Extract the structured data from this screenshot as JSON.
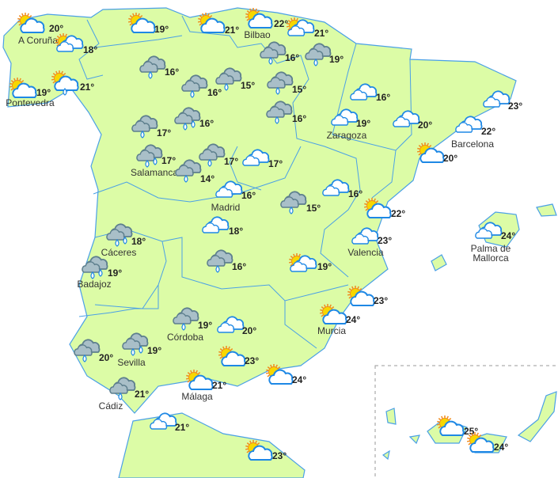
{
  "colors": {
    "land": "#dcfca6",
    "border": "#4aa0e6",
    "cloud_stroke": "#1e88e5",
    "rain_cloud": "#a9bfc8",
    "rain_stroke": "#5d7f8d",
    "sun": "#f7d700",
    "sun_rays": "#f08a1c"
  },
  "legend_icons": {
    "sun-cloud": "sun-behind-cloud-icon",
    "sun-clouds": "sun-behind-clouds-icon",
    "clouds": "clouds-icon",
    "rain": "rain-cloud-icon",
    "rain2": "showers-cloud-icon",
    "sun-cloud-rain": "sun-cloud-rain-icon"
  },
  "stations": [
    {
      "city": "A Coruña",
      "temp": "20°",
      "icon": "sun-cloud"
    },
    {
      "city": "",
      "temp": "18°",
      "icon": "sun-clouds"
    },
    {
      "city": "Pontevedra",
      "temp": "19°",
      "icon": "sun-cloud"
    },
    {
      "city": "",
      "temp": "21°",
      "icon": "sun-cloud-rain"
    },
    {
      "city": "",
      "temp": "19°",
      "icon": "sun-cloud"
    },
    {
      "city": "",
      "temp": "21°",
      "icon": "sun-cloud"
    },
    {
      "city": "Bilbao",
      "temp": "22°",
      "icon": "sun-cloud"
    },
    {
      "city": "",
      "temp": "21°",
      "icon": "sun-clouds"
    },
    {
      "city": "",
      "temp": "16°",
      "icon": "rain"
    },
    {
      "city": "",
      "temp": "19°",
      "icon": "rain"
    },
    {
      "city": "",
      "temp": "16°",
      "icon": "rain"
    },
    {
      "city": "",
      "temp": "16°",
      "icon": "rain"
    },
    {
      "city": "",
      "temp": "15°",
      "icon": "rain"
    },
    {
      "city": "",
      "temp": "15°",
      "icon": "rain"
    },
    {
      "city": "",
      "temp": "16°",
      "icon": "rain"
    },
    {
      "city": "",
      "temp": "17°",
      "icon": "rain"
    },
    {
      "city": "",
      "temp": "16°",
      "icon": "rain2"
    },
    {
      "city": "Salamanca",
      "temp": "17°",
      "icon": "rain2"
    },
    {
      "city": "",
      "temp": "17°",
      "icon": "rain"
    },
    {
      "city": "",
      "temp": "14°",
      "icon": "rain"
    },
    {
      "city": "",
      "temp": "17°",
      "icon": "clouds"
    },
    {
      "city": "Madrid",
      "temp": "16°",
      "icon": "clouds"
    },
    {
      "city": "",
      "temp": "18°",
      "icon": "clouds"
    },
    {
      "city": "",
      "temp": "15°",
      "icon": "rain"
    },
    {
      "city": "",
      "temp": "16°",
      "icon": "clouds"
    },
    {
      "city": "Zaragoza",
      "temp": "19°",
      "icon": "clouds"
    },
    {
      "city": "",
      "temp": "16°",
      "icon": "clouds"
    },
    {
      "city": "",
      "temp": "20°",
      "icon": "clouds"
    },
    {
      "city": "",
      "temp": "23°",
      "icon": "clouds"
    },
    {
      "city": "Barcelona",
      "temp": "22°",
      "icon": "clouds"
    },
    {
      "city": "",
      "temp": "20°",
      "icon": "sun-cloud"
    },
    {
      "city": "",
      "temp": "22°",
      "icon": "sun-cloud"
    },
    {
      "city": "Valencia",
      "temp": "23°",
      "icon": "clouds"
    },
    {
      "city": "",
      "temp": "19°",
      "icon": "sun-clouds"
    },
    {
      "city": "",
      "temp": "23°",
      "icon": "sun-cloud"
    },
    {
      "city": "Murcia",
      "temp": "24°",
      "icon": "sun-cloud"
    },
    {
      "city": "Palma de Mallorca",
      "temp": "24°",
      "icon": "clouds"
    },
    {
      "city": "Cáceres",
      "temp": "18°",
      "icon": "rain2"
    },
    {
      "city": "Badajoz",
      "temp": "19°",
      "icon": "rain2"
    },
    {
      "city": "",
      "temp": "16°",
      "icon": "rain"
    },
    {
      "city": "Córdoba",
      "temp": "19°",
      "icon": "rain"
    },
    {
      "city": "",
      "temp": "20°",
      "icon": "clouds"
    },
    {
      "city": "",
      "temp": "23°",
      "icon": "sun-cloud"
    },
    {
      "city": "",
      "temp": "24°",
      "icon": "sun-cloud"
    },
    {
      "city": "Sevilla",
      "temp": "19°",
      "icon": "rain2"
    },
    {
      "city": "",
      "temp": "20°",
      "icon": "rain"
    },
    {
      "city": "Cádiz",
      "temp": "21°",
      "icon": "rain"
    },
    {
      "city": "Málaga",
      "temp": "21°",
      "icon": "sun-cloud"
    },
    {
      "city": "",
      "temp": "21°",
      "icon": "clouds"
    },
    {
      "city": "",
      "temp": "23°",
      "icon": "sun-cloud"
    },
    {
      "city": "",
      "temp": "25°",
      "icon": "sun-cloud"
    },
    {
      "city": "",
      "temp": "24°",
      "icon": "sun-cloud"
    }
  ]
}
